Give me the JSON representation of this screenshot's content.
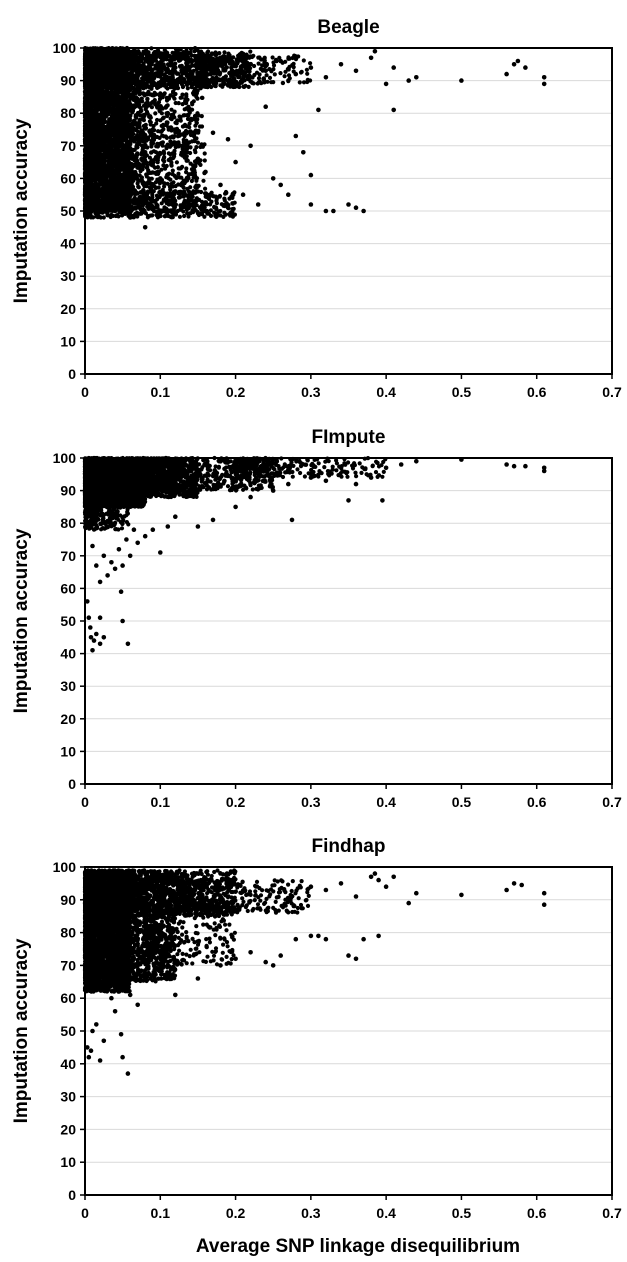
{
  "colors": {
    "marker": "#000000",
    "grid": "#d9d9d9",
    "axis": "#000000",
    "background": "#ffffff"
  },
  "figure": {
    "xlabel": "Average SNP linkage disequilibrium"
  },
  "chart_data": [
    {
      "type": "scatter",
      "title": "Beagle",
      "xlabel": "",
      "ylabel": "Imputation accuracy",
      "xlim": [
        0,
        0.7
      ],
      "ylim": [
        0,
        100
      ],
      "xticks": [
        "0",
        "0.1",
        "0.2",
        "0.3",
        "0.4",
        "0.5",
        "0.6",
        "0.7"
      ],
      "yticks": [
        "0",
        "10",
        "20",
        "30",
        "40",
        "50",
        "60",
        "70",
        "80",
        "90",
        "100"
      ],
      "grid": "horizontal",
      "points": [
        [
          0.003,
          99.5
        ],
        [
          0.01,
          97
        ],
        [
          0.02,
          93
        ],
        [
          0.03,
          88
        ],
        [
          0.04,
          84
        ],
        [
          0.05,
          80
        ],
        [
          0.06,
          76
        ],
        [
          0.07,
          72
        ],
        [
          0.08,
          68
        ],
        [
          0.09,
          64
        ],
        [
          0.1,
          60
        ],
        [
          0.12,
          56
        ],
        [
          0.14,
          52
        ],
        [
          0.16,
          50
        ],
        [
          0.02,
          52
        ],
        [
          0.04,
          50
        ],
        [
          0.06,
          48
        ],
        [
          0.08,
          45
        ],
        [
          0.1,
          95
        ],
        [
          0.12,
          94
        ],
        [
          0.14,
          96
        ],
        [
          0.16,
          93
        ],
        [
          0.18,
          97
        ],
        [
          0.2,
          92
        ],
        [
          0.22,
          95
        ],
        [
          0.24,
          93
        ],
        [
          0.26,
          96
        ],
        [
          0.28,
          92
        ],
        [
          0.3,
          94
        ],
        [
          0.32,
          91
        ],
        [
          0.34,
          95
        ],
        [
          0.36,
          93
        ],
        [
          0.38,
          97
        ],
        [
          0.385,
          99
        ],
        [
          0.4,
          89
        ],
        [
          0.41,
          94
        ],
        [
          0.43,
          90
        ],
        [
          0.44,
          91
        ],
        [
          0.5,
          90
        ],
        [
          0.56,
          92
        ],
        [
          0.57,
          95
        ],
        [
          0.575,
          96
        ],
        [
          0.585,
          94
        ],
        [
          0.61,
          91
        ],
        [
          0.61,
          89
        ],
        [
          0.1,
          86
        ],
        [
          0.11,
          80
        ],
        [
          0.12,
          75
        ],
        [
          0.13,
          70
        ],
        [
          0.14,
          78
        ],
        [
          0.15,
          66
        ],
        [
          0.16,
          62
        ],
        [
          0.17,
          74
        ],
        [
          0.18,
          58
        ],
        [
          0.19,
          72
        ],
        [
          0.2,
          65
        ],
        [
          0.21,
          55
        ],
        [
          0.22,
          70
        ],
        [
          0.23,
          52
        ],
        [
          0.24,
          82
        ],
        [
          0.25,
          60
        ],
        [
          0.26,
          58
        ],
        [
          0.27,
          55
        ],
        [
          0.28,
          73
        ],
        [
          0.29,
          68
        ],
        [
          0.3,
          52
        ],
        [
          0.3,
          61
        ],
        [
          0.31,
          81
        ],
        [
          0.32,
          50
        ],
        [
          0.33,
          50
        ],
        [
          0.35,
          52
        ],
        [
          0.36,
          51
        ],
        [
          0.37,
          50
        ],
        [
          0.41,
          81
        ]
      ],
      "regions": [
        {
          "x": [
            0.0,
            0.06
          ],
          "y": [
            50,
            100
          ],
          "n": 3500
        },
        {
          "x": [
            0.04,
            0.15
          ],
          "y": [
            50,
            100
          ],
          "n": 900
        },
        {
          "x": [
            0.0,
            0.22
          ],
          "y": [
            88,
            99
          ],
          "n": 1200
        },
        {
          "x": [
            0.15,
            0.3
          ],
          "y": [
            89,
            98
          ],
          "n": 250
        },
        {
          "x": [
            0.0,
            0.2
          ],
          "y": [
            48,
            56
          ],
          "n": 600
        },
        {
          "x": [
            0.06,
            0.16
          ],
          "y": [
            55,
            88
          ],
          "n": 400
        }
      ]
    },
    {
      "type": "scatter",
      "title": "FImpute",
      "xlabel": "",
      "ylabel": "Imputation accuracy",
      "xlim": [
        0,
        0.7
      ],
      "ylim": [
        0,
        100
      ],
      "xticks": [
        "0",
        "0.1",
        "0.2",
        "0.3",
        "0.4",
        "0.5",
        "0.6",
        "0.7"
      ],
      "yticks": [
        "0",
        "10",
        "20",
        "30",
        "40",
        "50",
        "60",
        "70",
        "80",
        "90",
        "100"
      ],
      "grid": "horizontal",
      "points": [
        [
          0.003,
          56
        ],
        [
          0.005,
          51
        ],
        [
          0.007,
          48
        ],
        [
          0.008,
          45
        ],
        [
          0.01,
          41
        ],
        [
          0.012,
          44
        ],
        [
          0.015,
          46
        ],
        [
          0.02,
          43
        ],
        [
          0.02,
          51
        ],
        [
          0.025,
          45
        ],
        [
          0.048,
          59
        ],
        [
          0.05,
          50
        ],
        [
          0.057,
          43
        ],
        [
          0.01,
          73
        ],
        [
          0.015,
          67
        ],
        [
          0.02,
          62
        ],
        [
          0.025,
          70
        ],
        [
          0.03,
          64
        ],
        [
          0.035,
          68
        ],
        [
          0.04,
          66
        ],
        [
          0.045,
          72
        ],
        [
          0.05,
          67
        ],
        [
          0.055,
          75
        ],
        [
          0.06,
          70
        ],
        [
          0.065,
          78
        ],
        [
          0.07,
          74
        ],
        [
          0.08,
          76
        ],
        [
          0.09,
          78
        ],
        [
          0.1,
          71
        ],
        [
          0.11,
          79
        ],
        [
          0.12,
          82
        ],
        [
          0.15,
          79
        ],
        [
          0.17,
          81
        ],
        [
          0.2,
          85
        ],
        [
          0.22,
          88
        ],
        [
          0.25,
          90
        ],
        [
          0.27,
          92
        ],
        [
          0.275,
          81
        ],
        [
          0.3,
          94
        ],
        [
          0.32,
          93
        ],
        [
          0.35,
          87
        ],
        [
          0.36,
          92
        ],
        [
          0.38,
          94
        ],
        [
          0.395,
          87
        ],
        [
          0.4,
          97
        ],
        [
          0.42,
          98
        ],
        [
          0.44,
          99
        ],
        [
          0.5,
          99.5
        ],
        [
          0.56,
          98
        ],
        [
          0.57,
          97.5
        ],
        [
          0.585,
          97.5
        ],
        [
          0.61,
          97
        ],
        [
          0.61,
          96
        ]
      ],
      "regions": [
        {
          "x": [
            0.0,
            0.08
          ],
          "y": [
            85,
            100
          ],
          "n": 3500
        },
        {
          "x": [
            0.0,
            0.15
          ],
          "y": [
            88,
            100
          ],
          "n": 1400
        },
        {
          "x": [
            0.08,
            0.25
          ],
          "y": [
            90,
            100
          ],
          "n": 700
        },
        {
          "x": [
            0.2,
            0.4
          ],
          "y": [
            94,
            100
          ],
          "n": 250
        },
        {
          "x": [
            0.0,
            0.06
          ],
          "y": [
            78,
            90
          ],
          "n": 300
        }
      ]
    },
    {
      "type": "scatter",
      "title": "Findhap",
      "xlabel": "Average SNP linkage disequilibrium",
      "ylabel": "Imputation accuracy",
      "xlim": [
        0,
        0.7
      ],
      "ylim": [
        0,
        100
      ],
      "xticks": [
        "0",
        "0.1",
        "0.2",
        "0.3",
        "0.4",
        "0.5",
        "0.6",
        "0.7"
      ],
      "yticks": [
        "0",
        "10",
        "20",
        "30",
        "40",
        "50",
        "60",
        "70",
        "80",
        "90",
        "100"
      ],
      "grid": "horizontal",
      "points": [
        [
          0.003,
          45
        ],
        [
          0.005,
          42
        ],
        [
          0.008,
          44
        ],
        [
          0.01,
          50
        ],
        [
          0.015,
          52
        ],
        [
          0.02,
          41
        ],
        [
          0.025,
          47
        ],
        [
          0.035,
          60
        ],
        [
          0.04,
          56
        ],
        [
          0.048,
          49
        ],
        [
          0.05,
          42
        ],
        [
          0.057,
          37
        ],
        [
          0.06,
          61
        ],
        [
          0.07,
          58
        ],
        [
          0.12,
          61
        ],
        [
          0.15,
          66
        ],
        [
          0.18,
          70
        ],
        [
          0.2,
          72
        ],
        [
          0.22,
          74
        ],
        [
          0.24,
          71
        ],
        [
          0.25,
          70
        ],
        [
          0.26,
          73
        ],
        [
          0.28,
          78
        ],
        [
          0.3,
          79
        ],
        [
          0.31,
          79
        ],
        [
          0.32,
          78
        ],
        [
          0.35,
          73
        ],
        [
          0.36,
          72
        ],
        [
          0.37,
          78
        ],
        [
          0.39,
          79
        ],
        [
          0.3,
          94
        ],
        [
          0.32,
          93
        ],
        [
          0.34,
          95
        ],
        [
          0.36,
          91
        ],
        [
          0.38,
          97
        ],
        [
          0.385,
          98
        ],
        [
          0.39,
          96
        ],
        [
          0.4,
          94
        ],
        [
          0.41,
          97
        ],
        [
          0.43,
          89
        ],
        [
          0.44,
          92
        ],
        [
          0.5,
          91.5
        ],
        [
          0.56,
          93
        ],
        [
          0.57,
          95
        ],
        [
          0.58,
          94.5
        ],
        [
          0.61,
          92
        ],
        [
          0.61,
          88.5
        ]
      ],
      "regions": [
        {
          "x": [
            0.0,
            0.06
          ],
          "y": [
            62,
            99
          ],
          "n": 3000
        },
        {
          "x": [
            0.03,
            0.12
          ],
          "y": [
            65,
            99
          ],
          "n": 1500
        },
        {
          "x": [
            0.0,
            0.2
          ],
          "y": [
            85,
            99
          ],
          "n": 1200
        },
        {
          "x": [
            0.12,
            0.3
          ],
          "y": [
            86,
            96
          ],
          "n": 350
        },
        {
          "x": [
            0.08,
            0.2
          ],
          "y": [
            70,
            90
          ],
          "n": 300
        }
      ]
    }
  ]
}
